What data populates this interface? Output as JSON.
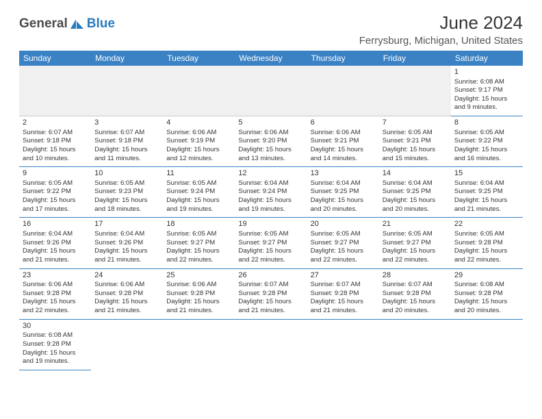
{
  "brand": {
    "name1": "General",
    "name2": "Blue"
  },
  "title": "June 2024",
  "location": "Ferrysburg, Michigan, United States",
  "colors": {
    "header_bg": "#3a82c4",
    "header_fg": "#ffffff",
    "cell_border": "#3a82c4",
    "text": "#333333",
    "brand_gray": "#4a4a4a",
    "brand_blue": "#2a7ac0"
  },
  "dayNames": [
    "Sunday",
    "Monday",
    "Tuesday",
    "Wednesday",
    "Thursday",
    "Friday",
    "Saturday"
  ],
  "weeks": [
    [
      null,
      null,
      null,
      null,
      null,
      null,
      {
        "n": "1",
        "sr": "Sunrise: 6:08 AM",
        "ss": "Sunset: 9:17 PM",
        "d1": "Daylight: 15 hours",
        "d2": "and 9 minutes."
      }
    ],
    [
      {
        "n": "2",
        "sr": "Sunrise: 6:07 AM",
        "ss": "Sunset: 9:18 PM",
        "d1": "Daylight: 15 hours",
        "d2": "and 10 minutes."
      },
      {
        "n": "3",
        "sr": "Sunrise: 6:07 AM",
        "ss": "Sunset: 9:18 PM",
        "d1": "Daylight: 15 hours",
        "d2": "and 11 minutes."
      },
      {
        "n": "4",
        "sr": "Sunrise: 6:06 AM",
        "ss": "Sunset: 9:19 PM",
        "d1": "Daylight: 15 hours",
        "d2": "and 12 minutes."
      },
      {
        "n": "5",
        "sr": "Sunrise: 6:06 AM",
        "ss": "Sunset: 9:20 PM",
        "d1": "Daylight: 15 hours",
        "d2": "and 13 minutes."
      },
      {
        "n": "6",
        "sr": "Sunrise: 6:06 AM",
        "ss": "Sunset: 9:21 PM",
        "d1": "Daylight: 15 hours",
        "d2": "and 14 minutes."
      },
      {
        "n": "7",
        "sr": "Sunrise: 6:05 AM",
        "ss": "Sunset: 9:21 PM",
        "d1": "Daylight: 15 hours",
        "d2": "and 15 minutes."
      },
      {
        "n": "8",
        "sr": "Sunrise: 6:05 AM",
        "ss": "Sunset: 9:22 PM",
        "d1": "Daylight: 15 hours",
        "d2": "and 16 minutes."
      }
    ],
    [
      {
        "n": "9",
        "sr": "Sunrise: 6:05 AM",
        "ss": "Sunset: 9:22 PM",
        "d1": "Daylight: 15 hours",
        "d2": "and 17 minutes."
      },
      {
        "n": "10",
        "sr": "Sunrise: 6:05 AM",
        "ss": "Sunset: 9:23 PM",
        "d1": "Daylight: 15 hours",
        "d2": "and 18 minutes."
      },
      {
        "n": "11",
        "sr": "Sunrise: 6:05 AM",
        "ss": "Sunset: 9:24 PM",
        "d1": "Daylight: 15 hours",
        "d2": "and 19 minutes."
      },
      {
        "n": "12",
        "sr": "Sunrise: 6:04 AM",
        "ss": "Sunset: 9:24 PM",
        "d1": "Daylight: 15 hours",
        "d2": "and 19 minutes."
      },
      {
        "n": "13",
        "sr": "Sunrise: 6:04 AM",
        "ss": "Sunset: 9:25 PM",
        "d1": "Daylight: 15 hours",
        "d2": "and 20 minutes."
      },
      {
        "n": "14",
        "sr": "Sunrise: 6:04 AM",
        "ss": "Sunset: 9:25 PM",
        "d1": "Daylight: 15 hours",
        "d2": "and 20 minutes."
      },
      {
        "n": "15",
        "sr": "Sunrise: 6:04 AM",
        "ss": "Sunset: 9:25 PM",
        "d1": "Daylight: 15 hours",
        "d2": "and 21 minutes."
      }
    ],
    [
      {
        "n": "16",
        "sr": "Sunrise: 6:04 AM",
        "ss": "Sunset: 9:26 PM",
        "d1": "Daylight: 15 hours",
        "d2": "and 21 minutes."
      },
      {
        "n": "17",
        "sr": "Sunrise: 6:04 AM",
        "ss": "Sunset: 9:26 PM",
        "d1": "Daylight: 15 hours",
        "d2": "and 21 minutes."
      },
      {
        "n": "18",
        "sr": "Sunrise: 6:05 AM",
        "ss": "Sunset: 9:27 PM",
        "d1": "Daylight: 15 hours",
        "d2": "and 22 minutes."
      },
      {
        "n": "19",
        "sr": "Sunrise: 6:05 AM",
        "ss": "Sunset: 9:27 PM",
        "d1": "Daylight: 15 hours",
        "d2": "and 22 minutes."
      },
      {
        "n": "20",
        "sr": "Sunrise: 6:05 AM",
        "ss": "Sunset: 9:27 PM",
        "d1": "Daylight: 15 hours",
        "d2": "and 22 minutes."
      },
      {
        "n": "21",
        "sr": "Sunrise: 6:05 AM",
        "ss": "Sunset: 9:27 PM",
        "d1": "Daylight: 15 hours",
        "d2": "and 22 minutes."
      },
      {
        "n": "22",
        "sr": "Sunrise: 6:05 AM",
        "ss": "Sunset: 9:28 PM",
        "d1": "Daylight: 15 hours",
        "d2": "and 22 minutes."
      }
    ],
    [
      {
        "n": "23",
        "sr": "Sunrise: 6:06 AM",
        "ss": "Sunset: 9:28 PM",
        "d1": "Daylight: 15 hours",
        "d2": "and 22 minutes."
      },
      {
        "n": "24",
        "sr": "Sunrise: 6:06 AM",
        "ss": "Sunset: 9:28 PM",
        "d1": "Daylight: 15 hours",
        "d2": "and 21 minutes."
      },
      {
        "n": "25",
        "sr": "Sunrise: 6:06 AM",
        "ss": "Sunset: 9:28 PM",
        "d1": "Daylight: 15 hours",
        "d2": "and 21 minutes."
      },
      {
        "n": "26",
        "sr": "Sunrise: 6:07 AM",
        "ss": "Sunset: 9:28 PM",
        "d1": "Daylight: 15 hours",
        "d2": "and 21 minutes."
      },
      {
        "n": "27",
        "sr": "Sunrise: 6:07 AM",
        "ss": "Sunset: 9:28 PM",
        "d1": "Daylight: 15 hours",
        "d2": "and 21 minutes."
      },
      {
        "n": "28",
        "sr": "Sunrise: 6:07 AM",
        "ss": "Sunset: 9:28 PM",
        "d1": "Daylight: 15 hours",
        "d2": "and 20 minutes."
      },
      {
        "n": "29",
        "sr": "Sunrise: 6:08 AM",
        "ss": "Sunset: 9:28 PM",
        "d1": "Daylight: 15 hours",
        "d2": "and 20 minutes."
      }
    ],
    [
      {
        "n": "30",
        "sr": "Sunrise: 6:08 AM",
        "ss": "Sunset: 9:28 PM",
        "d1": "Daylight: 15 hours",
        "d2": "and 19 minutes."
      },
      null,
      null,
      null,
      null,
      null,
      null
    ]
  ]
}
